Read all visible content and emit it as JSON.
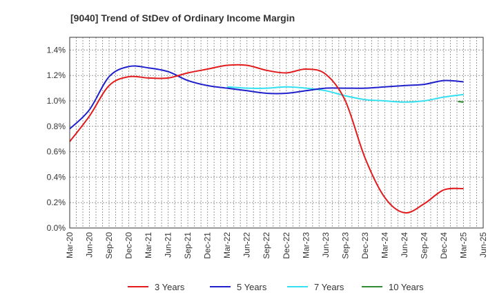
{
  "chart_data": {
    "type": "line",
    "title": "[9040]  Trend of StDev of Ordinary Income Margin",
    "xlabel": "",
    "ylabel": "",
    "x": [
      "Mar-20",
      "Jun-20",
      "Sep-20",
      "Dec-20",
      "Mar-21",
      "Jun-21",
      "Sep-21",
      "Dec-21",
      "Mar-22",
      "Jun-22",
      "Sep-22",
      "Dec-22",
      "Mar-23",
      "Jun-23",
      "Sep-23",
      "Dec-23",
      "Mar-24",
      "Jun-24",
      "Sep-24",
      "Dec-24",
      "Mar-25",
      "Jun-25"
    ],
    "y_ticks": [
      "0.0%",
      "0.2%",
      "0.4%",
      "0.6%",
      "0.8%",
      "1.0%",
      "1.2%",
      "1.4%"
    ],
    "ylim": [
      0,
      1.5
    ],
    "grid": true,
    "legend_position": "bottom",
    "series": [
      {
        "name": "3 Years",
        "color": "#e31a1c",
        "values": [
          0.68,
          0.88,
          1.12,
          1.19,
          1.18,
          1.18,
          1.22,
          1.25,
          1.28,
          1.28,
          1.24,
          1.22,
          1.25,
          1.21,
          1.0,
          0.55,
          0.24,
          0.12,
          0.19,
          0.3,
          0.31,
          null
        ]
      },
      {
        "name": "5 Years",
        "color": "#1f1fcc",
        "values": [
          0.78,
          0.93,
          1.19,
          1.27,
          1.26,
          1.23,
          1.16,
          1.12,
          1.1,
          1.08,
          1.06,
          1.06,
          1.08,
          1.1,
          1.1,
          1.1,
          1.11,
          1.12,
          1.13,
          1.16,
          1.15,
          null
        ]
      },
      {
        "name": "7 Years",
        "color": "#33e0f0",
        "values": [
          null,
          null,
          null,
          null,
          null,
          null,
          null,
          null,
          1.11,
          1.1,
          1.1,
          1.11,
          1.1,
          1.08,
          1.04,
          1.01,
          1.0,
          0.99,
          1.0,
          1.03,
          1.05,
          null
        ]
      },
      {
        "name": "10 Years",
        "color": "#2e8b2e",
        "values": [
          null,
          null,
          null,
          null,
          null,
          null,
          null,
          null,
          null,
          null,
          null,
          null,
          null,
          null,
          null,
          null,
          null,
          null,
          null,
          null,
          0.99,
          null
        ]
      }
    ]
  }
}
